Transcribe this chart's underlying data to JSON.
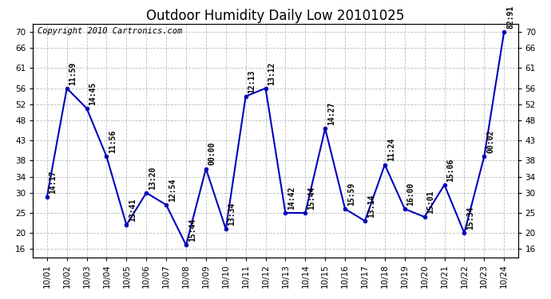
{
  "title": "Outdoor Humidity Daily Low 20101025",
  "copyright": "Copyright 2010 Cartronics.com",
  "dates": [
    "10/01",
    "10/02",
    "10/03",
    "10/04",
    "10/05",
    "10/06",
    "10/07",
    "10/08",
    "10/09",
    "10/10",
    "10/11",
    "10/12",
    "10/13",
    "10/14",
    "10/15",
    "10/16",
    "10/17",
    "10/18",
    "10/19",
    "10/20",
    "10/21",
    "10/22",
    "10/23",
    "10/24"
  ],
  "values": [
    29,
    56,
    51,
    39,
    22,
    30,
    27,
    17,
    36,
    21,
    54,
    56,
    25,
    25,
    46,
    26,
    23,
    37,
    26,
    24,
    32,
    20,
    39,
    70
  ],
  "labels": [
    "14:17",
    "11:59",
    "14:45",
    "11:56",
    "13:41",
    "13:20",
    "12:54",
    "15:44",
    "00:00",
    "13:34",
    "12:13",
    "13:12",
    "14:42",
    "15:44",
    "14:27",
    "15:59",
    "13:14",
    "11:24",
    "16:00",
    "15:01",
    "15:06",
    "15:34",
    "00:02",
    "82:91"
  ],
  "yticks": [
    16,
    20,
    25,
    30,
    34,
    38,
    43,
    48,
    52,
    56,
    61,
    66,
    70
  ],
  "ylim": [
    14,
    72
  ],
  "xlim": [
    -0.7,
    23.7
  ],
  "line_color": "#0000bb",
  "marker_color": "#0000bb",
  "bg_color": "#ffffff",
  "grid_color": "#bbbbbb",
  "title_fontsize": 12,
  "label_fontsize": 7,
  "copyright_fontsize": 7.5,
  "tick_fontsize": 7.5
}
